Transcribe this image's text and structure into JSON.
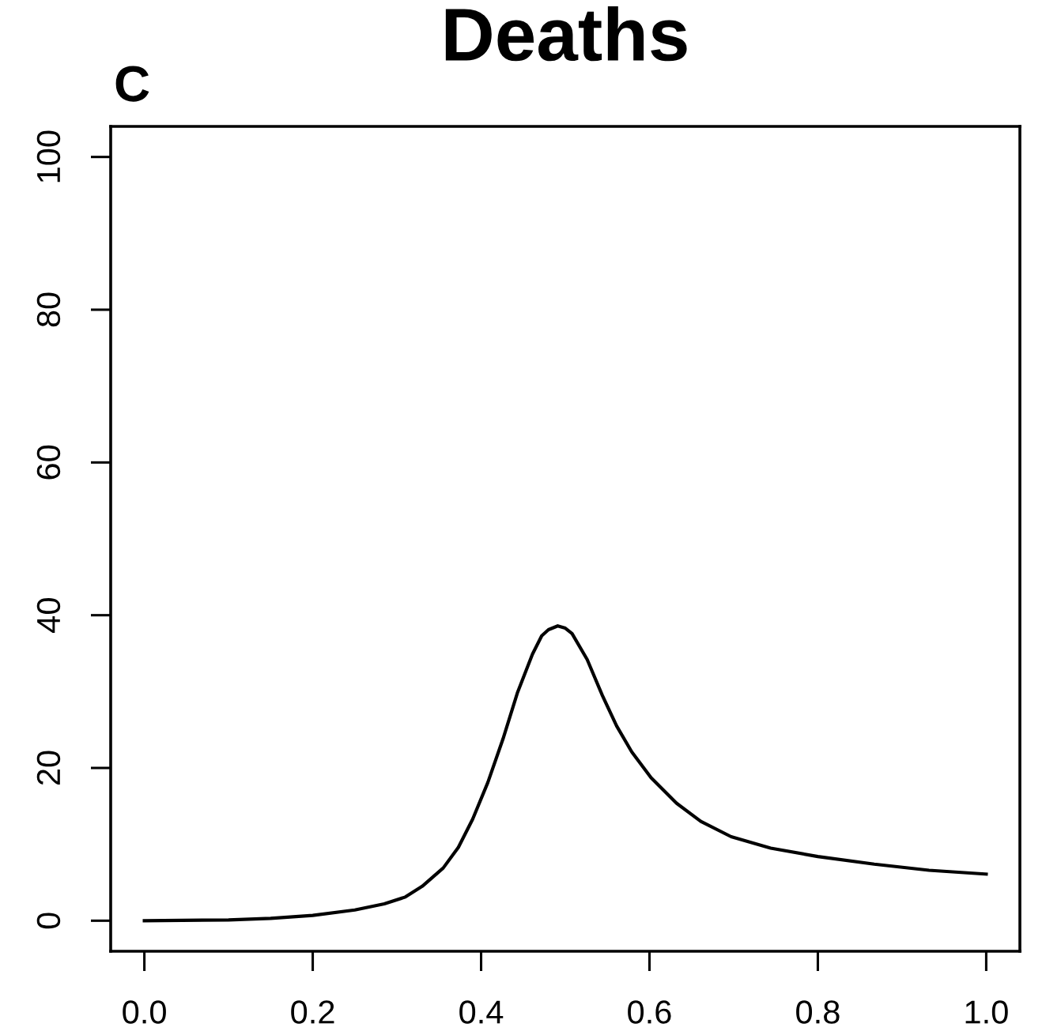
{
  "chart_data": {
    "type": "line",
    "title": "Deaths",
    "annotations": [
      "C"
    ],
    "x": [
      0,
      0.1,
      0.15,
      0.2,
      0.25,
      0.285,
      0.31,
      0.33,
      0.355,
      0.373,
      0.39,
      0.408,
      0.426,
      0.443,
      0.461,
      0.472,
      0.48,
      0.491,
      0.5,
      0.508,
      0.526,
      0.544,
      0.561,
      0.579,
      0.602,
      0.632,
      0.661,
      0.697,
      0.744,
      0.8,
      0.867,
      0.932,
      1.0
    ],
    "series": [
      {
        "color": "#000000",
        "values": [
          0,
          0.1,
          0.3,
          0.7,
          1.4,
          2.2,
          3.1,
          4.5,
          6.9,
          9.6,
          13.3,
          18.1,
          23.8,
          29.8,
          34.9,
          37.3,
          38.1,
          38.6,
          38.3,
          37.6,
          34.2,
          29.5,
          25.5,
          22.1,
          18.7,
          15.4,
          13.0,
          11.0,
          9.5,
          8.4,
          7.4,
          6.6,
          6.1
        ]
      }
    ],
    "xlim": [
      -0.04,
      1.04
    ],
    "ylim": [
      -4,
      104
    ],
    "xticks": [
      {
        "value": 0,
        "label": "0.0"
      },
      0.2,
      0.4,
      0.6,
      0.8,
      {
        "value": 1,
        "label": "1.0"
      }
    ],
    "yticks": [
      0,
      20,
      40,
      60,
      80,
      100
    ],
    "line_style": "solid"
  }
}
